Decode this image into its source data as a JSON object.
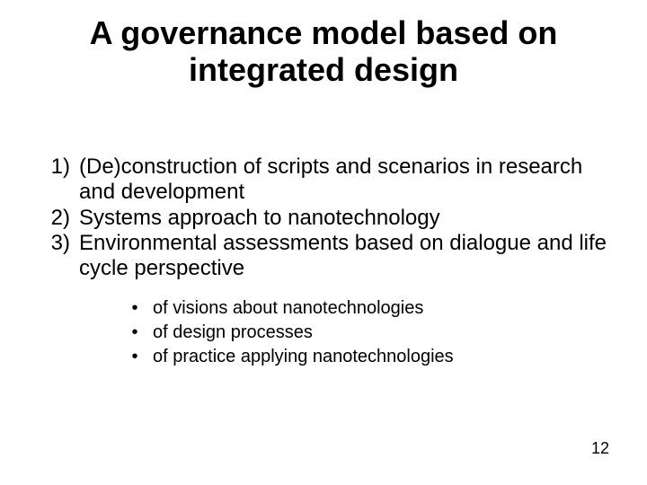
{
  "title": {
    "line1": "A governance model based on",
    "line2": "integrated design",
    "font_size_pt": 36,
    "font_weight": "bold",
    "color": "#000000"
  },
  "numbered": {
    "font_size_pt": 24,
    "color": "#000000",
    "items": [
      {
        "marker": "1)",
        "text": "(De)construction of scripts and scenarios in research and development"
      },
      {
        "marker": "2)",
        "text": "Systems approach to nanotechnology"
      },
      {
        "marker": "3)",
        "text": "Environmental assessments based on dialogue and life cycle perspective"
      }
    ]
  },
  "bullets": {
    "font_size_pt": 20,
    "color": "#000000",
    "marker": "•",
    "items": [
      "of visions about nanotechnologies",
      "of design processes",
      "of practice applying nanotechnologies"
    ]
  },
  "page_number": {
    "value": "12",
    "font_size_pt": 18,
    "color": "#000000"
  },
  "background_color": "#ffffff"
}
